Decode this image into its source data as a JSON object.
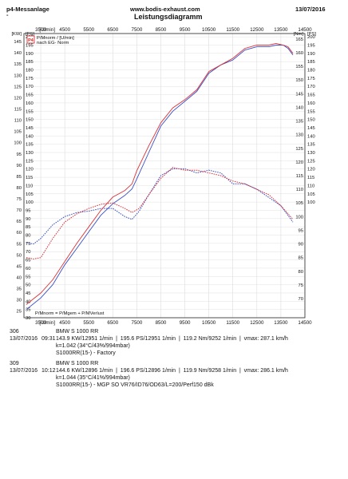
{
  "header": {
    "left": "p4-Messanlage",
    "left_mark": "-",
    "center": "www.bodis-exhaust.com",
    "right": "13/07/2016",
    "subtitle": "Leistungsdiagramm"
  },
  "chart_data": {
    "type": "line",
    "title": "Leistungsdiagramm",
    "x_unit": "[U/min]",
    "x_ticks": [
      3500,
      4500,
      5500,
      6500,
      7500,
      8500,
      9500,
      10500,
      11500,
      12500,
      13500,
      14500
    ],
    "xlim": [
      2800,
      14500
    ],
    "y_left": {
      "units": [
        "[KW]",
        "[PS]"
      ],
      "kw_ticks": [
        25,
        30,
        35,
        40,
        45,
        50,
        55,
        60,
        65,
        70,
        75,
        80,
        85,
        90,
        95,
        100,
        105,
        110,
        115,
        120,
        125,
        130,
        135,
        140,
        145
      ],
      "ps_ticks": [
        30,
        35,
        40,
        45,
        50,
        55,
        60,
        65,
        70,
        75,
        80,
        85,
        90,
        95,
        100,
        105,
        110,
        115,
        120,
        125,
        130,
        135,
        140,
        145,
        150,
        155,
        160,
        165,
        170,
        175,
        180,
        185,
        190,
        195,
        200
      ],
      "ylim_ps": [
        30,
        202
      ]
    },
    "y_right": {
      "unit": "[Nm]",
      "ticks": [
        70,
        75,
        80,
        85,
        90,
        95,
        100,
        105,
        110,
        115,
        120,
        125,
        130,
        135,
        140,
        145,
        150,
        155,
        160,
        165
      ],
      "ylim": [
        63,
        167
      ]
    },
    "legend_top": {
      "logo": "P4",
      "line1": "P/Mnorm / [U/min]",
      "line2": "nach EG- Norm"
    },
    "legend_bottom": "P/Mnorm = P/Mgem + P/MVerlust",
    "series": [
      {
        "label": "306",
        "color": "#3a4fc4",
        "power_ps": [
          [
            2900,
            35
          ],
          [
            3500,
            42
          ],
          [
            4000,
            50
          ],
          [
            4500,
            62
          ],
          [
            5000,
            72
          ],
          [
            5500,
            82
          ],
          [
            6000,
            92
          ],
          [
            6500,
            99
          ],
          [
            7000,
            104
          ],
          [
            7300,
            108
          ],
          [
            7500,
            114
          ],
          [
            8000,
            130
          ],
          [
            8500,
            146
          ],
          [
            9000,
            155
          ],
          [
            9500,
            161
          ],
          [
            10000,
            167
          ],
          [
            10500,
            178
          ],
          [
            11000,
            183
          ],
          [
            11500,
            186
          ],
          [
            12000,
            192
          ],
          [
            12500,
            194
          ],
          [
            13000,
            194
          ],
          [
            13300,
            195
          ],
          [
            13600,
            195
          ],
          [
            13800,
            193
          ],
          [
            14000,
            189
          ]
        ],
        "torque_nm": [
          [
            2900,
            90.5
          ],
          [
            3200,
            90
          ],
          [
            3500,
            92
          ],
          [
            4000,
            97
          ],
          [
            4500,
            100
          ],
          [
            5000,
            101.5
          ],
          [
            5500,
            102
          ],
          [
            6000,
            103
          ],
          [
            6500,
            103
          ],
          [
            7000,
            100
          ],
          [
            7300,
            99
          ],
          [
            7600,
            102
          ],
          [
            8000,
            108
          ],
          [
            8500,
            115
          ],
          [
            9000,
            117.5
          ],
          [
            9500,
            117.5
          ],
          [
            10000,
            116
          ],
          [
            10500,
            117
          ],
          [
            11000,
            116
          ],
          [
            11500,
            112
          ],
          [
            12000,
            112
          ],
          [
            12500,
            110
          ],
          [
            13000,
            107
          ],
          [
            13500,
            104
          ],
          [
            14000,
            98
          ]
        ]
      },
      {
        "label": "309",
        "color": "#d8343a",
        "power_ps": [
          [
            2900,
            38
          ],
          [
            3500,
            45
          ],
          [
            4000,
            53
          ],
          [
            4500,
            64
          ],
          [
            5000,
            75
          ],
          [
            5500,
            85
          ],
          [
            6000,
            95
          ],
          [
            6500,
            103
          ],
          [
            7000,
            107
          ],
          [
            7300,
            111
          ],
          [
            7500,
            119
          ],
          [
            8000,
            134
          ],
          [
            8500,
            148
          ],
          [
            9000,
            157
          ],
          [
            9500,
            162
          ],
          [
            10000,
            168
          ],
          [
            10500,
            179
          ],
          [
            11000,
            183
          ],
          [
            11500,
            187
          ],
          [
            12000,
            193
          ],
          [
            12500,
            195
          ],
          [
            13000,
            195
          ],
          [
            13300,
            196
          ],
          [
            13600,
            195
          ],
          [
            13800,
            194
          ],
          [
            14000,
            190
          ]
        ],
        "torque_nm": [
          [
            2900,
            85
          ],
          [
            3200,
            84.5
          ],
          [
            3500,
            85
          ],
          [
            4000,
            92
          ],
          [
            4500,
            98
          ],
          [
            5000,
            101
          ],
          [
            5500,
            103
          ],
          [
            6000,
            104.5
          ],
          [
            6500,
            105
          ],
          [
            7000,
            103
          ],
          [
            7300,
            101.5
          ],
          [
            7600,
            103
          ],
          [
            8000,
            108
          ],
          [
            8500,
            114
          ],
          [
            9000,
            118
          ],
          [
            9500,
            117
          ],
          [
            10000,
            117
          ],
          [
            10500,
            116
          ],
          [
            11000,
            115
          ],
          [
            11500,
            113
          ],
          [
            12000,
            112
          ],
          [
            12500,
            110
          ],
          [
            13000,
            108
          ],
          [
            13500,
            104
          ],
          [
            14000,
            99
          ]
        ]
      }
    ]
  },
  "runs": [
    {
      "id": "306",
      "date": "13/07/2016",
      "time": "09:31",
      "name": "BMW S 1000 RR",
      "values": "143.9 KW/12951 1/min  |  195.6 PS/12951 1/min  |  119.2 Nm/9252 1/min  |  vmax: 287.1 km/h",
      "k": "k=1.042 (34°C/43%/994mbar)",
      "config": "S1000RR(15-) - Factory"
    },
    {
      "id": "309",
      "date": "13/07/2016",
      "time": "10:12",
      "name": "BMW S 1000 RR",
      "values": "144.6 KW/12896 1/min  |  196.6 PS/12896 1/min  |  119.9 Nm/9258 1/min  |  vmax: 286.1 km/h",
      "k": "k=1.044 (35°C/41%/994mbar)",
      "config": "S1000RR(15-) - MGP SO VR76/ID76/OD63/L=200/Perf150 dBk"
    }
  ]
}
